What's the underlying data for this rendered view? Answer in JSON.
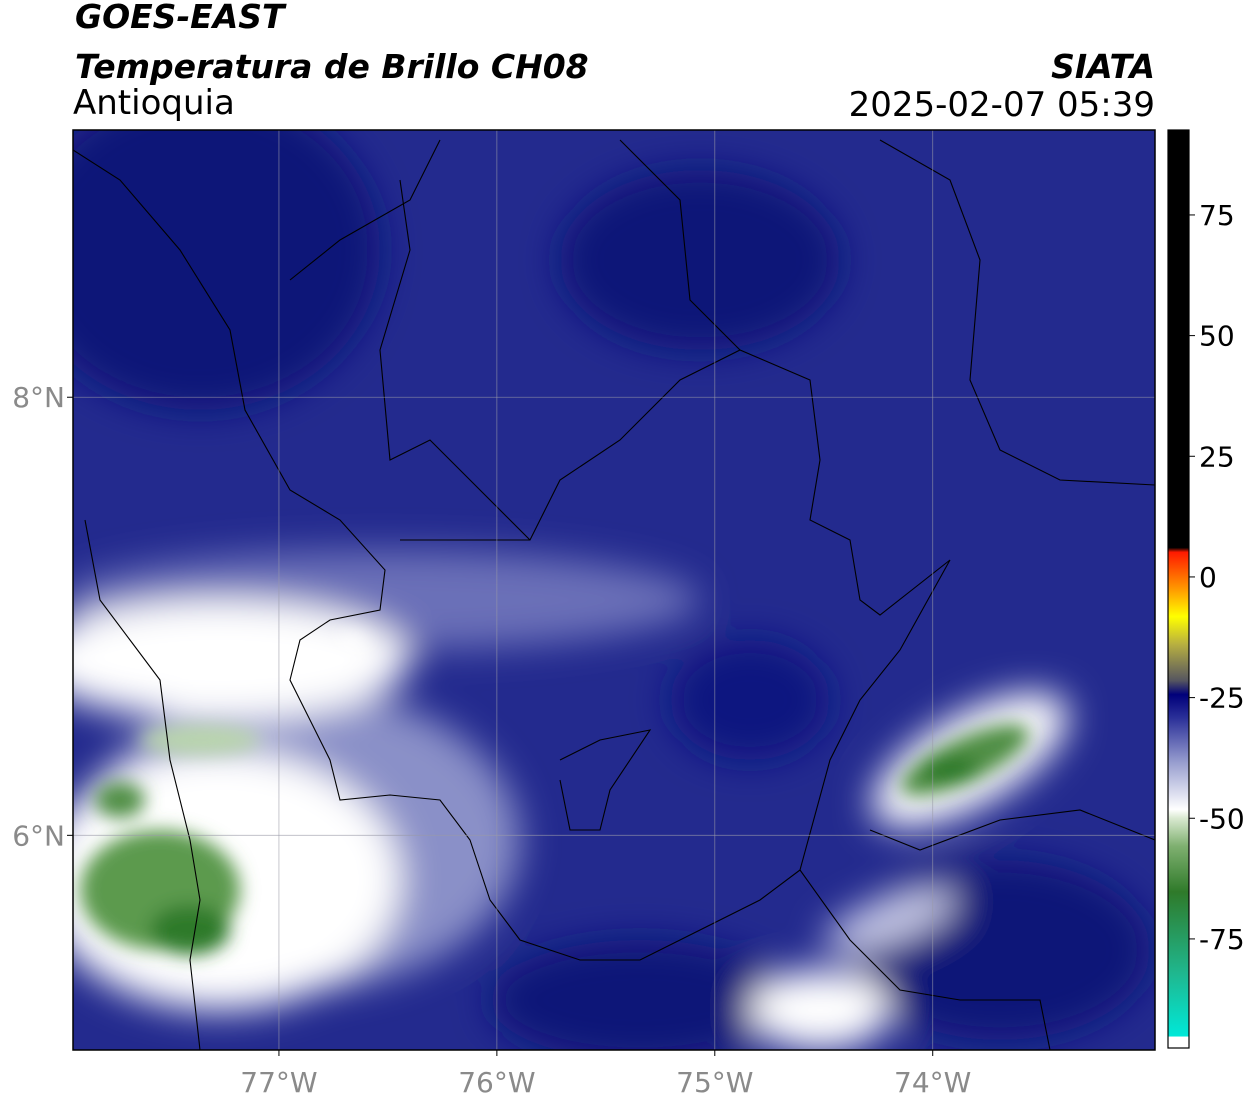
{
  "header": {
    "title": "GOES-EAST",
    "subtitle": "Temperatura de Brillo CH08",
    "region": "Antioquia",
    "source": "SIATA",
    "datetime": "2025-02-07 05:39"
  },
  "map": {
    "lon_range": [
      -77.945,
      -72.98
    ],
    "lat_range": [
      5.02,
      9.22
    ],
    "lon_ticks": [
      {
        "value": -77,
        "label": "77°W"
      },
      {
        "value": -76,
        "label": "76°W"
      },
      {
        "value": -75,
        "label": "75°W"
      },
      {
        "value": -74,
        "label": "74°W"
      }
    ],
    "lat_ticks": [
      {
        "value": 8,
        "label": "8°N"
      },
      {
        "value": 6,
        "label": "6°N"
      }
    ],
    "grid": true
  },
  "colorbar": {
    "range": [
      -97.6,
      92.6
    ],
    "ticks": [
      75,
      50,
      25,
      0,
      -25,
      -50,
      -75
    ]
  }
}
